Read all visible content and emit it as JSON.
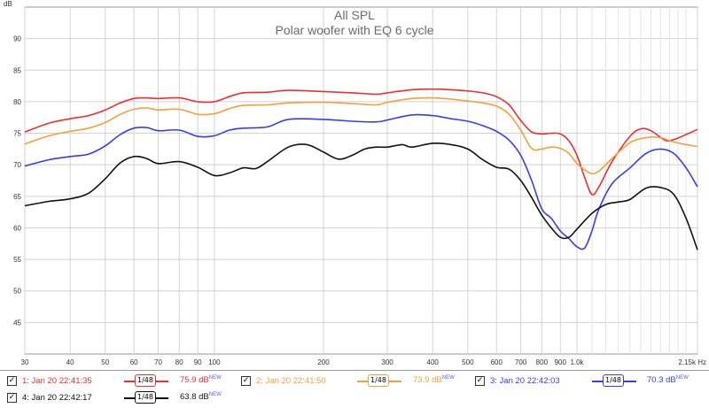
{
  "chart_data": {
    "type": "line",
    "title": "All SPL",
    "subtitle": "Polar woofer with EQ 6 cycle",
    "ylabel": "dB",
    "xlabel_unit": "Hz",
    "x_scale": "log",
    "xlim": [
      30,
      2150
    ],
    "ylim": [
      40,
      95
    ],
    "grid": true,
    "y_ticks": [
      45,
      50,
      55,
      60,
      65,
      70,
      75,
      80,
      85,
      90
    ],
    "x_ticks": [
      {
        "v": 30,
        "label": "30"
      },
      {
        "v": 40,
        "label": "40"
      },
      {
        "v": 50,
        "label": "50"
      },
      {
        "v": 60,
        "label": "60"
      },
      {
        "v": 70,
        "label": "70"
      },
      {
        "v": 80,
        "label": "80"
      },
      {
        "v": 90,
        "label": "90"
      },
      {
        "v": 100,
        "label": "100"
      },
      {
        "v": 200,
        "label": "200"
      },
      {
        "v": 300,
        "label": "300"
      },
      {
        "v": 400,
        "label": "400"
      },
      {
        "v": 500,
        "label": "500"
      },
      {
        "v": 600,
        "label": "600"
      },
      {
        "v": 700,
        "label": "700"
      },
      {
        "v": 800,
        "label": "800"
      },
      {
        "v": 900,
        "label": "900"
      },
      {
        "v": 1000,
        "label": "1.0k"
      },
      {
        "v": 2150,
        "label": "2.15k Hz"
      }
    ],
    "minor_x": [
      1100,
      1200,
      1300,
      1400,
      1500,
      1600,
      1700,
      1800,
      1900,
      2000
    ],
    "series": [
      {
        "name": "1: Jan 20 22:41:35",
        "color": "#ee2e2e",
        "points": [
          [
            30,
            75.2
          ],
          [
            35,
            76.6
          ],
          [
            40,
            77.3
          ],
          [
            45,
            77.8
          ],
          [
            50,
            78.7
          ],
          [
            55,
            79.8
          ],
          [
            60,
            80.5
          ],
          [
            65,
            80.6
          ],
          [
            70,
            80.5
          ],
          [
            80,
            80.6
          ],
          [
            90,
            80.0
          ],
          [
            100,
            80.0
          ],
          [
            110,
            80.8
          ],
          [
            120,
            81.4
          ],
          [
            140,
            81.5
          ],
          [
            160,
            81.8
          ],
          [
            200,
            81.6
          ],
          [
            240,
            81.4
          ],
          [
            280,
            81.2
          ],
          [
            300,
            81.4
          ],
          [
            350,
            81.9
          ],
          [
            400,
            82.0
          ],
          [
            450,
            81.9
          ],
          [
            500,
            81.7
          ],
          [
            550,
            81.4
          ],
          [
            600,
            80.8
          ],
          [
            650,
            79.5
          ],
          [
            700,
            77.0
          ],
          [
            750,
            75.2
          ],
          [
            800,
            74.9
          ],
          [
            850,
            75.0
          ],
          [
            900,
            74.9
          ],
          [
            950,
            73.8
          ],
          [
            1000,
            71.5
          ],
          [
            1050,
            68.0
          ],
          [
            1100,
            65.3
          ],
          [
            1150,
            66.5
          ],
          [
            1250,
            70.5
          ],
          [
            1400,
            74.5
          ],
          [
            1500,
            75.7
          ],
          [
            1600,
            75.4
          ],
          [
            1750,
            73.9
          ],
          [
            1850,
            74.0
          ],
          [
            2000,
            74.8
          ],
          [
            2150,
            75.6
          ]
        ]
      },
      {
        "name": "2: Jan 20 22:41:50",
        "color": "#f2a03a",
        "points": [
          [
            30,
            73.3
          ],
          [
            35,
            74.6
          ],
          [
            40,
            75.3
          ],
          [
            45,
            75.8
          ],
          [
            50,
            76.7
          ],
          [
            55,
            78.0
          ],
          [
            60,
            78.8
          ],
          [
            65,
            79.0
          ],
          [
            70,
            78.7
          ],
          [
            80,
            78.8
          ],
          [
            90,
            78.0
          ],
          [
            100,
            78.1
          ],
          [
            110,
            78.9
          ],
          [
            120,
            79.4
          ],
          [
            140,
            79.5
          ],
          [
            160,
            79.8
          ],
          [
            200,
            79.9
          ],
          [
            240,
            79.7
          ],
          [
            280,
            79.5
          ],
          [
            300,
            79.9
          ],
          [
            350,
            80.5
          ],
          [
            400,
            80.6
          ],
          [
            450,
            80.4
          ],
          [
            500,
            80.1
          ],
          [
            550,
            79.8
          ],
          [
            600,
            79.3
          ],
          [
            650,
            78.0
          ],
          [
            700,
            75.5
          ],
          [
            750,
            72.6
          ],
          [
            800,
            72.5
          ],
          [
            850,
            72.8
          ],
          [
            900,
            72.6
          ],
          [
            950,
            71.8
          ],
          [
            1000,
            70.2
          ],
          [
            1050,
            69.2
          ],
          [
            1100,
            68.6
          ],
          [
            1150,
            69.0
          ],
          [
            1250,
            71.0
          ],
          [
            1400,
            73.5
          ],
          [
            1550,
            74.3
          ],
          [
            1700,
            74.3
          ],
          [
            1850,
            73.6
          ],
          [
            2000,
            73.2
          ],
          [
            2150,
            72.9
          ]
        ]
      },
      {
        "name": "3: Jan 20 22:42:03",
        "color": "#3a3aee",
        "points": [
          [
            30,
            69.8
          ],
          [
            35,
            70.8
          ],
          [
            40,
            71.3
          ],
          [
            45,
            71.7
          ],
          [
            50,
            73.0
          ],
          [
            55,
            74.8
          ],
          [
            60,
            75.8
          ],
          [
            65,
            75.9
          ],
          [
            70,
            75.4
          ],
          [
            80,
            75.5
          ],
          [
            90,
            74.5
          ],
          [
            100,
            74.6
          ],
          [
            110,
            75.5
          ],
          [
            120,
            75.8
          ],
          [
            140,
            76.0
          ],
          [
            160,
            77.2
          ],
          [
            200,
            77.2
          ],
          [
            240,
            76.9
          ],
          [
            280,
            76.8
          ],
          [
            300,
            77.1
          ],
          [
            350,
            77.9
          ],
          [
            400,
            77.8
          ],
          [
            450,
            77.3
          ],
          [
            500,
            76.9
          ],
          [
            550,
            76.2
          ],
          [
            600,
            75.3
          ],
          [
            650,
            73.9
          ],
          [
            700,
            71.5
          ],
          [
            750,
            67.5
          ],
          [
            800,
            63.0
          ],
          [
            850,
            61.5
          ],
          [
            900,
            59.5
          ],
          [
            950,
            58.3
          ],
          [
            1000,
            57.0
          ],
          [
            1050,
            56.8
          ],
          [
            1100,
            59.5
          ],
          [
            1150,
            63.0
          ],
          [
            1250,
            67.0
          ],
          [
            1400,
            69.5
          ],
          [
            1550,
            71.8
          ],
          [
            1700,
            72.5
          ],
          [
            1850,
            71.8
          ],
          [
            2000,
            69.5
          ],
          [
            2150,
            66.5
          ]
        ]
      },
      {
        "name": "4: Jan 20 22:42:17",
        "color": "#111111",
        "points": [
          [
            30,
            63.5
          ],
          [
            35,
            64.2
          ],
          [
            40,
            64.6
          ],
          [
            45,
            65.5
          ],
          [
            50,
            67.8
          ],
          [
            55,
            70.3
          ],
          [
            60,
            71.3
          ],
          [
            65,
            71.0
          ],
          [
            70,
            70.2
          ],
          [
            80,
            70.5
          ],
          [
            90,
            69.6
          ],
          [
            100,
            68.3
          ],
          [
            110,
            68.7
          ],
          [
            120,
            69.5
          ],
          [
            130,
            69.4
          ],
          [
            140,
            70.5
          ],
          [
            160,
            72.8
          ],
          [
            180,
            73.2
          ],
          [
            200,
            72.0
          ],
          [
            220,
            70.9
          ],
          [
            240,
            71.5
          ],
          [
            260,
            72.5
          ],
          [
            280,
            72.8
          ],
          [
            300,
            72.8
          ],
          [
            330,
            73.2
          ],
          [
            350,
            72.8
          ],
          [
            400,
            73.4
          ],
          [
            450,
            73.2
          ],
          [
            500,
            72.5
          ],
          [
            550,
            70.8
          ],
          [
            600,
            69.6
          ],
          [
            650,
            69.3
          ],
          [
            700,
            67.5
          ],
          [
            750,
            64.8
          ],
          [
            800,
            62.0
          ],
          [
            850,
            60.0
          ],
          [
            900,
            58.5
          ],
          [
            950,
            58.5
          ],
          [
            1000,
            59.8
          ],
          [
            1100,
            62.3
          ],
          [
            1200,
            63.7
          ],
          [
            1300,
            64.1
          ],
          [
            1400,
            64.5
          ],
          [
            1550,
            66.3
          ],
          [
            1700,
            66.4
          ],
          [
            1850,
            65.3
          ],
          [
            2000,
            61.5
          ],
          [
            2150,
            56.5
          ]
        ]
      }
    ]
  },
  "legend": [
    {
      "label": "1: Jan 20 22:41:35",
      "smoothing": "1/48",
      "value": "75.9 dB",
      "badge": "NEW",
      "color": "#ee2e2e",
      "checked": "✓"
    },
    {
      "label": "2: Jan 20 22:41:50",
      "smoothing": "1/48",
      "value": "73.9 dB",
      "badge": "NEW",
      "color": "#f2a03a",
      "checked": "✓"
    },
    {
      "label": "3: Jan 20 22:42:03",
      "smoothing": "1/48",
      "value": "70.3 dB",
      "badge": "NEW",
      "color": "#3a3aee",
      "checked": "✓"
    },
    {
      "label": "4: Jan 20 22:42:17",
      "smoothing": "1/48",
      "value": "63.8 dB",
      "badge": "NEW",
      "color": "#111111",
      "checked": "✓"
    }
  ]
}
